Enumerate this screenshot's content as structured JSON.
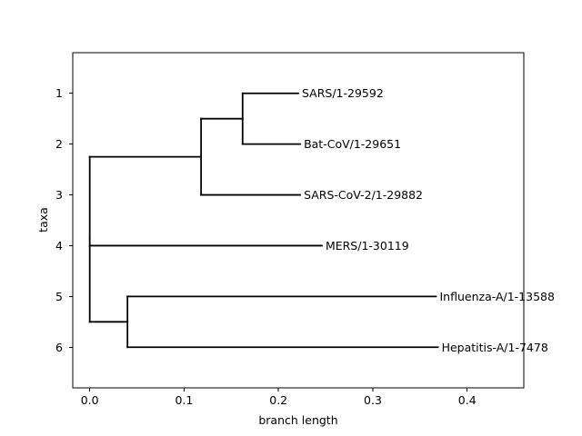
{
  "chart_data": {
    "type": "tree",
    "xlabel": "branch length",
    "ylabel": "taxa",
    "xlim": [
      -0.018,
      0.46
    ],
    "ylim": [
      6.8,
      0.2
    ],
    "x_ticks": [
      0.0,
      0.1,
      0.2,
      0.3,
      0.4
    ],
    "x_tick_labels": [
      "0.0",
      "0.1",
      "0.2",
      "0.3",
      "0.4"
    ],
    "y_ticks": [
      1,
      2,
      3,
      4,
      5,
      6
    ],
    "y_tick_labels": [
      "1",
      "2",
      "3",
      "4",
      "5",
      "6"
    ],
    "grid": false,
    "tree": {
      "branch_length": 0,
      "children": [
        {
          "branch_length": 0.118,
          "children": [
            {
              "branch_length": 0.044,
              "children": [
                {
                  "name": "SARS/1-29592",
                  "branch_length": 0.059
                },
                {
                  "name": "Bat-CoV/1-29651",
                  "branch_length": 0.061
                }
              ]
            },
            {
              "name": "SARS-CoV-2/1-29882",
              "branch_length": 0.105
            }
          ]
        },
        {
          "name": "MERS/1-30119",
          "branch_length": 0.246
        },
        {
          "branch_length": 0.04,
          "children": [
            {
              "name": "Influenza-A/1-13588",
              "branch_length": 0.327
            },
            {
              "name": "Hepatitis-A/1-7478",
              "branch_length": 0.329
            }
          ]
        }
      ]
    }
  }
}
